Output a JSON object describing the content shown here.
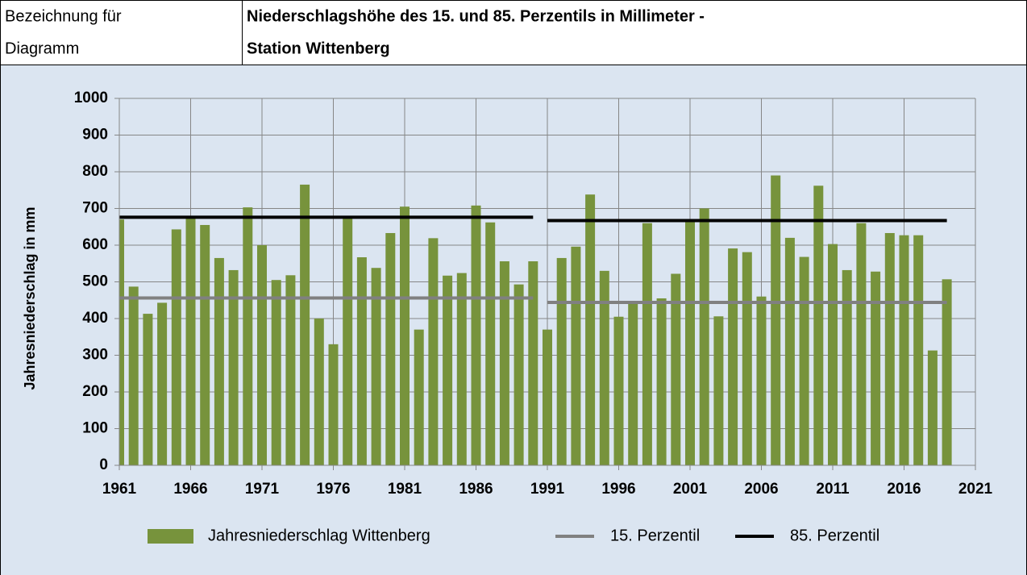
{
  "header": {
    "label_lines": [
      "Bezeichnung für",
      "Diagramm"
    ],
    "title_lines": [
      "Niederschlagshöhe des 15. und 85. Perzentils in Millimeter -",
      "Station Wittenberg"
    ]
  },
  "chart_data": {
    "type": "bar",
    "ylabel": "Jahresniederschlag in mm",
    "x": [
      1961,
      1962,
      1963,
      1964,
      1965,
      1966,
      1967,
      1968,
      1969,
      1970,
      1971,
      1972,
      1973,
      1974,
      1975,
      1976,
      1977,
      1978,
      1979,
      1980,
      1981,
      1982,
      1983,
      1984,
      1985,
      1986,
      1987,
      1988,
      1989,
      1990,
      1991,
      1992,
      1993,
      1994,
      1995,
      1996,
      1997,
      1998,
      1999,
      2000,
      2001,
      2002,
      2003,
      2004,
      2005,
      2006,
      2007,
      2008,
      2009,
      2010,
      2011,
      2012,
      2013,
      2014,
      2015,
      2016,
      2017,
      2018,
      2019
    ],
    "series": [
      {
        "name": "Jahresniederschlag Wittenberg",
        "type": "bar",
        "color": "#77933c",
        "values": [
          670,
          487,
          413,
          443,
          643,
          675,
          655,
          565,
          532,
          703,
          600,
          505,
          518,
          765,
          400,
          330,
          680,
          567,
          538,
          633,
          705,
          370,
          619,
          517,
          524,
          708,
          662,
          556,
          493,
          556,
          370,
          565,
          596,
          738,
          530,
          405,
          440,
          660,
          455,
          522,
          670,
          700,
          406,
          591,
          581,
          460,
          790,
          620,
          568,
          762,
          603,
          532,
          660,
          528,
          633,
          627,
          627,
          313,
          507
        ]
      },
      {
        "name": "15. Perzentil",
        "type": "line",
        "color": "#808080",
        "x": [
          1961,
          1990,
          null,
          1991,
          2019
        ],
        "values": [
          456,
          456,
          null,
          444,
          444
        ]
      },
      {
        "name": "85. Perzentil",
        "type": "line",
        "color": "#000000",
        "x": [
          1961,
          1990,
          null,
          1991,
          2019
        ],
        "values": [
          676,
          676,
          null,
          667,
          667
        ]
      }
    ],
    "xlim": [
      1961,
      2021
    ],
    "xticks": [
      1961,
      1966,
      1971,
      1976,
      1981,
      1986,
      1991,
      1996,
      2001,
      2006,
      2011,
      2016,
      2021
    ],
    "ylim": [
      0,
      1000
    ],
    "yticks": [
      0,
      100,
      200,
      300,
      400,
      500,
      600,
      700,
      800,
      900,
      1000
    ],
    "grid": true,
    "legend": "bottom"
  }
}
